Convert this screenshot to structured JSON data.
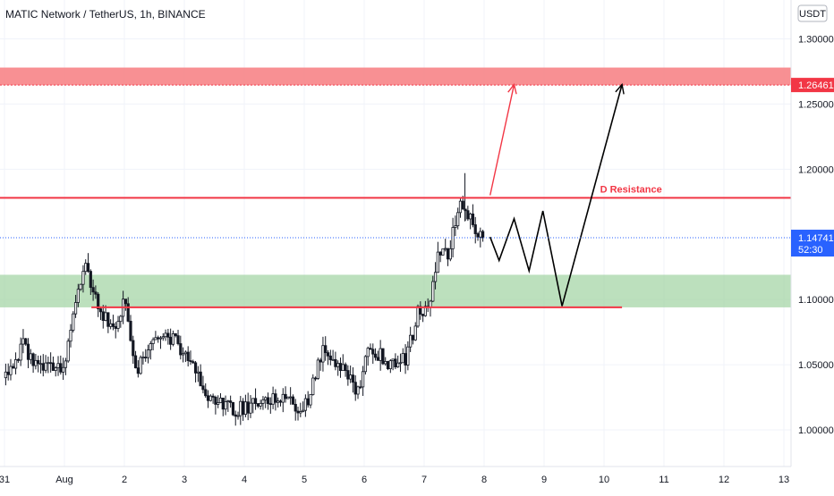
{
  "header": {
    "title": "MATIC Network / TetherUS, 1h, BINANCE",
    "currency_label": "USDT"
  },
  "chart_data": {
    "type": "candlestick",
    "title": "MATIC Network / TetherUS, 1h, BINANCE",
    "ylim": [
      0.965,
      1.335
    ],
    "y_ticks": [
      {
        "value": 1.3,
        "label": "1.30000"
      },
      {
        "value": 1.25,
        "label": "1.25000"
      },
      {
        "value": 1.2,
        "label": "1.20000"
      },
      {
        "value": 1.1,
        "label": "1.10000"
      },
      {
        "value": 1.05,
        "label": "1.05000"
      },
      {
        "value": 1.0,
        "label": "1.00000"
      }
    ],
    "x_ticks": [
      {
        "label": "31",
        "day": 0
      },
      {
        "label": "Aug",
        "day": 1
      },
      {
        "label": "2",
        "day": 2
      },
      {
        "label": "3",
        "day": 3
      },
      {
        "label": "4",
        "day": 4
      },
      {
        "label": "5",
        "day": 5
      },
      {
        "label": "6",
        "day": 6
      },
      {
        "label": "7",
        "day": 7
      },
      {
        "label": "8",
        "day": 8
      },
      {
        "label": "9",
        "day": 9
      },
      {
        "label": "10",
        "day": 10
      },
      {
        "label": "11",
        "day": 11
      },
      {
        "label": "12",
        "day": 12
      },
      {
        "label": "13",
        "day": 13
      }
    ],
    "price_trajectory": [
      {
        "day": 0.0,
        "price": 1.04
      },
      {
        "day": 0.3,
        "price": 1.065
      },
      {
        "day": 0.6,
        "price": 1.045
      },
      {
        "day": 1.0,
        "price": 1.05
      },
      {
        "day": 1.2,
        "price": 1.105
      },
      {
        "day": 1.35,
        "price": 1.125
      },
      {
        "day": 1.55,
        "price": 1.095
      },
      {
        "day": 1.8,
        "price": 1.075
      },
      {
        "day": 2.0,
        "price": 1.1
      },
      {
        "day": 2.2,
        "price": 1.045
      },
      {
        "day": 2.5,
        "price": 1.065
      },
      {
        "day": 2.8,
        "price": 1.07
      },
      {
        "day": 3.1,
        "price": 1.055
      },
      {
        "day": 3.4,
        "price": 1.025
      },
      {
        "day": 3.8,
        "price": 1.015
      },
      {
        "day": 4.2,
        "price": 1.02
      },
      {
        "day": 4.6,
        "price": 1.025
      },
      {
        "day": 5.0,
        "price": 1.015
      },
      {
        "day": 5.3,
        "price": 1.06
      },
      {
        "day": 5.6,
        "price": 1.05
      },
      {
        "day": 5.9,
        "price": 1.03
      },
      {
        "day": 6.1,
        "price": 1.065
      },
      {
        "day": 6.4,
        "price": 1.05
      },
      {
        "day": 6.7,
        "price": 1.055
      },
      {
        "day": 6.9,
        "price": 1.09
      },
      {
        "day": 7.1,
        "price": 1.095
      },
      {
        "day": 7.25,
        "price": 1.14
      },
      {
        "day": 7.4,
        "price": 1.135
      },
      {
        "day": 7.6,
        "price": 1.175
      },
      {
        "day": 7.8,
        "price": 1.16
      },
      {
        "day": 8.0,
        "price": 1.147
      }
    ],
    "last_price": 1.14741,
    "last_price_label": "1.14741",
    "countdown_label": "52:30",
    "target_price": 1.26461,
    "target_price_label": "1.26461",
    "resistance_zone": [
      1.2645,
      1.278
    ],
    "support_zone": [
      1.094,
      1.119
    ],
    "resistance_level": 1.178,
    "resistance_label": "D Resistance",
    "support_level": 1.094,
    "support_line_days": [
      1.45,
      10.3
    ],
    "projection_red": [
      {
        "day": 8.1,
        "price": 1.18
      },
      {
        "day": 8.5,
        "price": 1.265
      }
    ],
    "projection_black": [
      {
        "day": 8.1,
        "price": 1.148
      },
      {
        "day": 8.25,
        "price": 1.13
      },
      {
        "day": 8.5,
        "price": 1.162
      },
      {
        "day": 8.75,
        "price": 1.122
      },
      {
        "day": 8.98,
        "price": 1.168
      },
      {
        "day": 9.3,
        "price": 1.095
      },
      {
        "day": 10.3,
        "price": 1.265
      }
    ],
    "colors": {
      "up": "#26a69a",
      "down": "#131722",
      "candle": "#131722",
      "resistance_zone": "#f77c80",
      "support_zone": "#a5d6a7",
      "red_line": "#f23645",
      "last_price_badge": "#2962ff",
      "target_badge": "#f23645",
      "grid": "#f0f3fa",
      "axis_text": "#131722"
    }
  }
}
